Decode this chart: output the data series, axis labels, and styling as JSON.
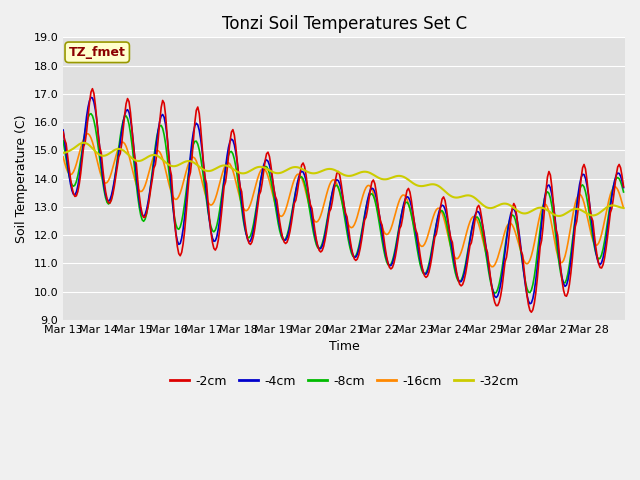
{
  "title": "Tonzi Soil Temperatures Set C",
  "xlabel": "Time",
  "ylabel": "Soil Temperature (C)",
  "ylim": [
    9.0,
    19.0
  ],
  "yticks": [
    9.0,
    10.0,
    11.0,
    12.0,
    13.0,
    14.0,
    15.0,
    16.0,
    17.0,
    18.0,
    19.0
  ],
  "xtick_labels": [
    "Mar 13",
    "Mar 14",
    "Mar 15",
    "Mar 16",
    "Mar 17",
    "Mar 18",
    "Mar 19",
    "Mar 20",
    "Mar 21",
    "Mar 22",
    "Mar 23",
    "Mar 24",
    "Mar 25",
    "Mar 26",
    "Mar 27",
    "Mar 28"
  ],
  "annotation_text": "TZ_fmet",
  "series": {
    "-2cm": {
      "color": "#dd0000",
      "linewidth": 1.2
    },
    "-4cm": {
      "color": "#0000cc",
      "linewidth": 1.2
    },
    "-8cm": {
      "color": "#00bb00",
      "linewidth": 1.2
    },
    "-16cm": {
      "color": "#ff8800",
      "linewidth": 1.2
    },
    "-32cm": {
      "color": "#cccc00",
      "linewidth": 1.5
    }
  },
  "fig_bg": "#f0f0f0",
  "plot_bg": "#e0e0e0",
  "grid_color": "#ffffff",
  "title_fontsize": 12,
  "axis_fontsize": 9,
  "tick_fontsize": 8,
  "legend_fontsize": 9
}
